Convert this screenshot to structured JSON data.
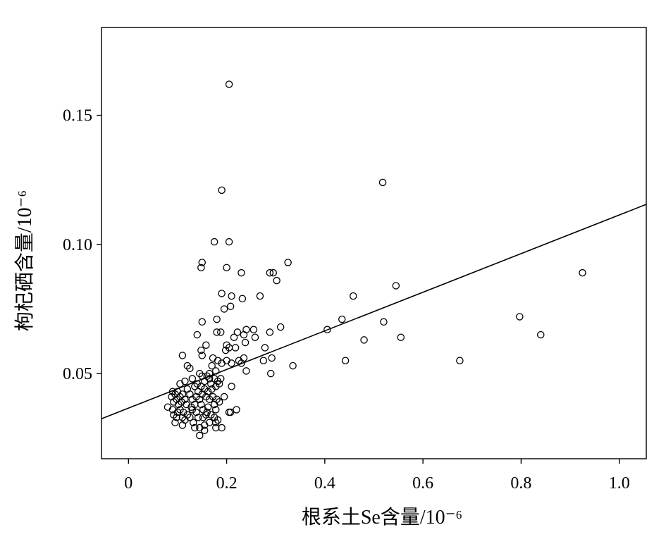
{
  "chart_data": {
    "type": "scatter",
    "title": "",
    "xlabel": "根系土Se含量/10⁻⁶",
    "ylabel": "枸杞硒含量/10⁻⁶",
    "xlim": [
      -0.055,
      1.055
    ],
    "ylim": [
      0.017,
      0.184
    ],
    "x_ticks": [
      0,
      0.2,
      0.4,
      0.6,
      0.8,
      1.0
    ],
    "x_tick_labels": [
      "0",
      "0.2",
      "0.4",
      "0.6",
      "0.8",
      "1.0"
    ],
    "y_ticks": [
      0.05,
      0.1,
      0.15
    ],
    "y_tick_labels": [
      "0.05",
      "0.10",
      "0.15"
    ],
    "grid": false,
    "legend": "none",
    "colors": {
      "marker": "#000000",
      "line": "#000000",
      "background": "#ffffff"
    },
    "marker": "open-circle",
    "fit_line": {
      "x": [
        -0.055,
        1.055
      ],
      "y": [
        0.0325,
        0.1155
      ]
    },
    "points": [
      [
        0.205,
        0.162
      ],
      [
        0.518,
        0.124
      ],
      [
        0.19,
        0.121
      ],
      [
        0.175,
        0.101
      ],
      [
        0.205,
        0.101
      ],
      [
        0.15,
        0.093
      ],
      [
        0.148,
        0.091
      ],
      [
        0.2,
        0.091
      ],
      [
        0.325,
        0.093
      ],
      [
        0.23,
        0.089
      ],
      [
        0.288,
        0.089
      ],
      [
        0.295,
        0.089
      ],
      [
        0.302,
        0.086
      ],
      [
        0.925,
        0.089
      ],
      [
        0.19,
        0.081
      ],
      [
        0.21,
        0.08
      ],
      [
        0.232,
        0.079
      ],
      [
        0.268,
        0.08
      ],
      [
        0.458,
        0.08
      ],
      [
        0.545,
        0.084
      ],
      [
        0.208,
        0.076
      ],
      [
        0.195,
        0.075
      ],
      [
        0.435,
        0.071
      ],
      [
        0.15,
        0.07
      ],
      [
        0.18,
        0.071
      ],
      [
        0.52,
        0.07
      ],
      [
        0.797,
        0.072
      ],
      [
        0.31,
        0.068
      ],
      [
        0.405,
        0.067
      ],
      [
        0.14,
        0.065
      ],
      [
        0.18,
        0.066
      ],
      [
        0.188,
        0.066
      ],
      [
        0.215,
        0.064
      ],
      [
        0.222,
        0.066
      ],
      [
        0.235,
        0.065
      ],
      [
        0.24,
        0.067
      ],
      [
        0.255,
        0.067
      ],
      [
        0.258,
        0.064
      ],
      [
        0.238,
        0.062
      ],
      [
        0.288,
        0.066
      ],
      [
        0.555,
        0.064
      ],
      [
        0.84,
        0.065
      ],
      [
        0.158,
        0.061
      ],
      [
        0.2,
        0.061
      ],
      [
        0.198,
        0.059
      ],
      [
        0.218,
        0.06
      ],
      [
        0.205,
        0.06
      ],
      [
        0.278,
        0.06
      ],
      [
        0.48,
        0.063
      ],
      [
        0.11,
        0.057
      ],
      [
        0.148,
        0.059
      ],
      [
        0.15,
        0.057
      ],
      [
        0.172,
        0.056
      ],
      [
        0.182,
        0.055
      ],
      [
        0.19,
        0.054
      ],
      [
        0.2,
        0.055
      ],
      [
        0.21,
        0.054
      ],
      [
        0.225,
        0.055
      ],
      [
        0.23,
        0.054
      ],
      [
        0.235,
        0.056
      ],
      [
        0.275,
        0.055
      ],
      [
        0.292,
        0.056
      ],
      [
        0.335,
        0.053
      ],
      [
        0.442,
        0.055
      ],
      [
        0.675,
        0.055
      ],
      [
        0.12,
        0.053
      ],
      [
        0.125,
        0.052
      ],
      [
        0.145,
        0.05
      ],
      [
        0.165,
        0.05
      ],
      [
        0.17,
        0.053
      ],
      [
        0.178,
        0.051
      ],
      [
        0.24,
        0.051
      ],
      [
        0.29,
        0.05
      ],
      [
        0.115,
        0.047
      ],
      [
        0.13,
        0.048
      ],
      [
        0.14,
        0.046
      ],
      [
        0.15,
        0.049
      ],
      [
        0.155,
        0.047
      ],
      [
        0.16,
        0.049
      ],
      [
        0.165,
        0.048
      ],
      [
        0.168,
        0.046
      ],
      [
        0.175,
        0.048
      ],
      [
        0.182,
        0.047
      ],
      [
        0.188,
        0.048
      ],
      [
        0.105,
        0.046
      ],
      [
        0.12,
        0.044
      ],
      [
        0.135,
        0.045
      ],
      [
        0.142,
        0.043
      ],
      [
        0.148,
        0.045
      ],
      [
        0.155,
        0.044
      ],
      [
        0.162,
        0.043
      ],
      [
        0.17,
        0.044
      ],
      [
        0.178,
        0.045
      ],
      [
        0.185,
        0.046
      ],
      [
        0.21,
        0.045
      ],
      [
        0.09,
        0.043
      ],
      [
        0.095,
        0.042
      ],
      [
        0.1,
        0.043
      ],
      [
        0.105,
        0.041
      ],
      [
        0.11,
        0.042
      ],
      [
        0.115,
        0.04
      ],
      [
        0.125,
        0.042
      ],
      [
        0.13,
        0.04
      ],
      [
        0.138,
        0.041
      ],
      [
        0.145,
        0.04
      ],
      [
        0.15,
        0.042
      ],
      [
        0.158,
        0.041
      ],
      [
        0.165,
        0.04
      ],
      [
        0.172,
        0.041
      ],
      [
        0.18,
        0.04
      ],
      [
        0.088,
        0.041
      ],
      [
        0.092,
        0.039
      ],
      [
        0.098,
        0.04
      ],
      [
        0.102,
        0.038
      ],
      [
        0.108,
        0.039
      ],
      [
        0.118,
        0.038
      ],
      [
        0.128,
        0.037
      ],
      [
        0.135,
        0.038
      ],
      [
        0.148,
        0.038
      ],
      [
        0.162,
        0.037
      ],
      [
        0.175,
        0.038
      ],
      [
        0.185,
        0.039
      ],
      [
        0.195,
        0.041
      ],
      [
        0.08,
        0.037
      ],
      [
        0.09,
        0.036
      ],
      [
        0.1,
        0.035
      ],
      [
        0.105,
        0.036
      ],
      [
        0.112,
        0.035
      ],
      [
        0.12,
        0.034
      ],
      [
        0.13,
        0.036
      ],
      [
        0.138,
        0.035
      ],
      [
        0.152,
        0.036
      ],
      [
        0.16,
        0.035
      ],
      [
        0.168,
        0.034
      ],
      [
        0.178,
        0.036
      ],
      [
        0.205,
        0.035
      ],
      [
        0.22,
        0.036
      ],
      [
        0.092,
        0.034
      ],
      [
        0.098,
        0.033
      ],
      [
        0.11,
        0.033
      ],
      [
        0.115,
        0.032
      ],
      [
        0.125,
        0.033
      ],
      [
        0.142,
        0.033
      ],
      [
        0.152,
        0.033
      ],
      [
        0.158,
        0.034
      ],
      [
        0.175,
        0.033
      ],
      [
        0.182,
        0.032
      ],
      [
        0.208,
        0.035
      ],
      [
        0.095,
        0.031
      ],
      [
        0.11,
        0.03
      ],
      [
        0.132,
        0.031
      ],
      [
        0.145,
        0.029
      ],
      [
        0.155,
        0.03
      ],
      [
        0.165,
        0.031
      ],
      [
        0.178,
        0.031
      ],
      [
        0.135,
        0.029
      ],
      [
        0.155,
        0.028
      ],
      [
        0.178,
        0.029
      ],
      [
        0.19,
        0.029
      ],
      [
        0.145,
        0.026
      ]
    ]
  }
}
